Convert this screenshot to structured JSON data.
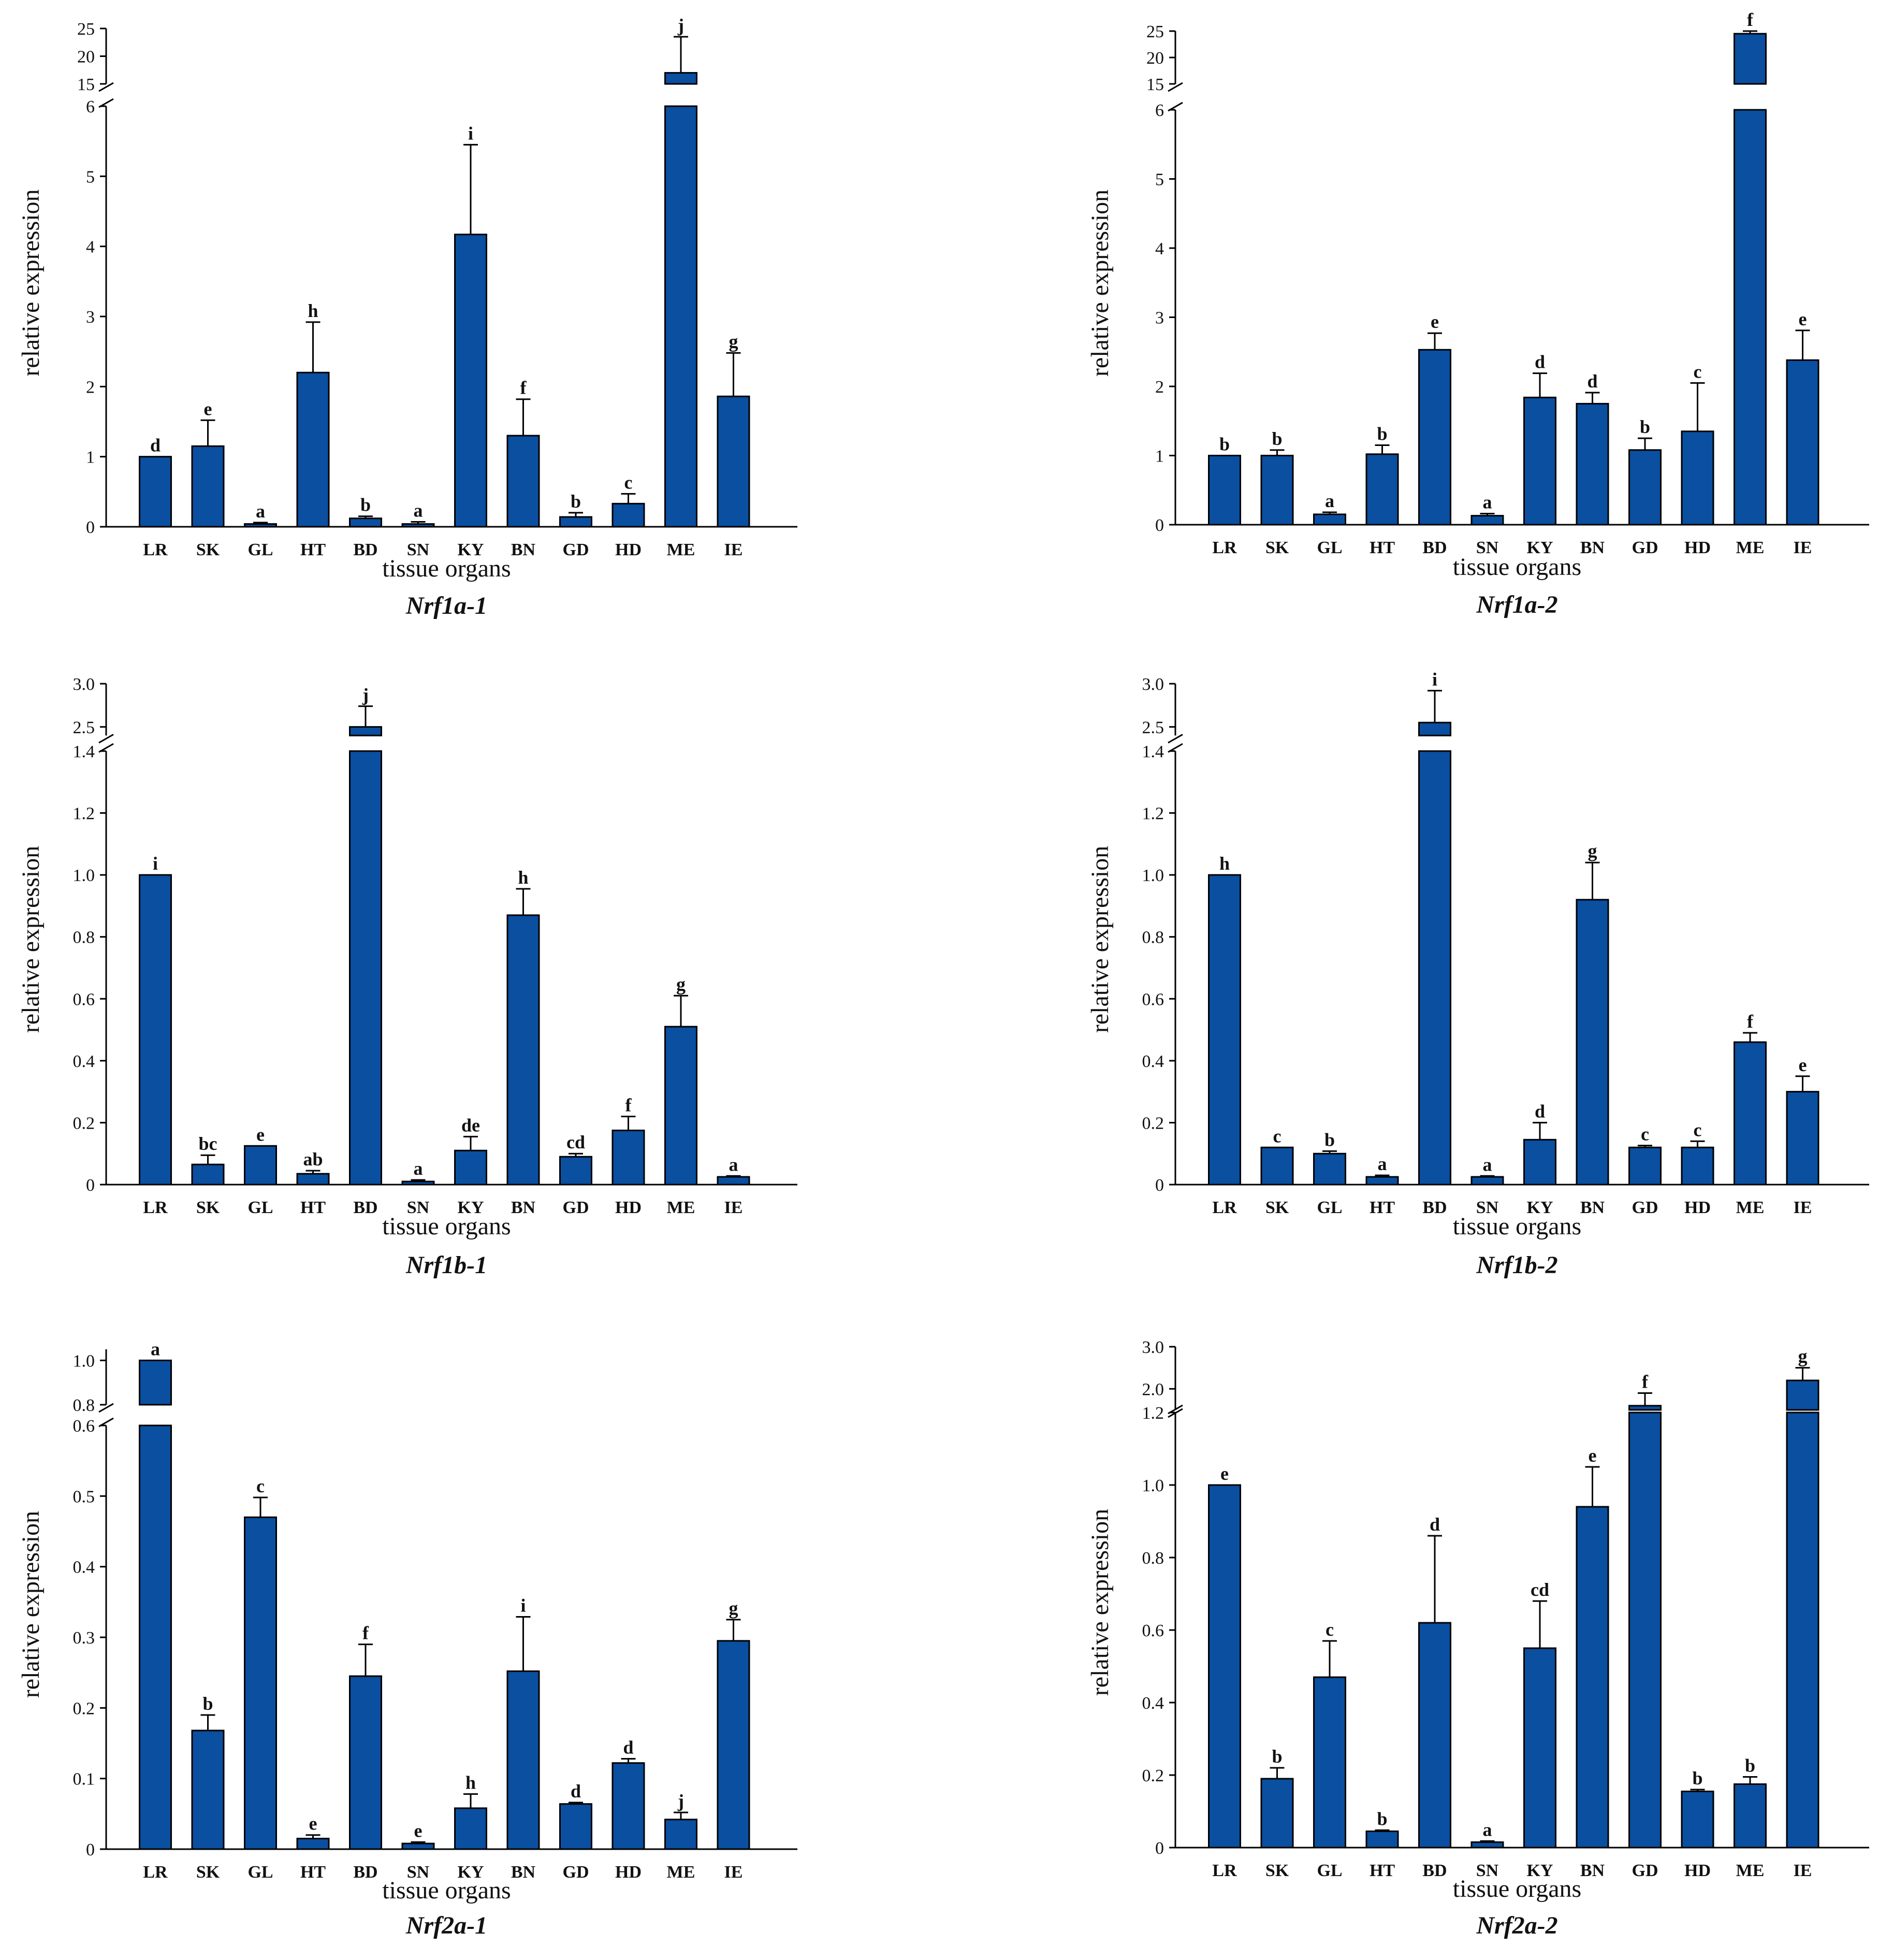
{
  "style": {
    "bar_color": "#0a4fa0",
    "axis_color": "#000000",
    "text_color": "#111111"
  },
  "chart_data": [
    {
      "type": "bar",
      "title": "Nrf1a-1",
      "xlabel": "tissue organs",
      "ylabel": "relative expression",
      "categories": [
        "LR",
        "SK",
        "GL",
        "HT",
        "BD",
        "SN",
        "KY",
        "BN",
        "GD",
        "HD",
        "ME",
        "IE"
      ],
      "values": [
        1.0,
        1.15,
        0.04,
        2.2,
        0.12,
        0.04,
        4.17,
        1.3,
        0.14,
        0.33,
        17.0,
        1.86
      ],
      "errors": [
        0.0,
        0.37,
        0.02,
        0.72,
        0.03,
        0.03,
        1.28,
        0.52,
        0.06,
        0.14,
        6.5,
        0.62
      ],
      "significance": [
        "d",
        "e",
        "a",
        "h",
        "b",
        "a",
        "i",
        "f",
        "b",
        "c",
        "j",
        "g"
      ],
      "lower_ylim": [
        0,
        6
      ],
      "lower_ticks": [
        "0",
        "1",
        "2",
        "3",
        "4",
        "5",
        "6"
      ],
      "upper_ylim": [
        15,
        25
      ],
      "upper_ticks": [
        "15",
        "20",
        "25"
      ]
    },
    {
      "type": "bar",
      "title": "Nrf1a-2",
      "xlabel": "tissue organs",
      "ylabel": "relative expression",
      "categories": [
        "LR",
        "SK",
        "GL",
        "HT",
        "BD",
        "SN",
        "KY",
        "BN",
        "GD",
        "HD",
        "ME",
        "IE"
      ],
      "values": [
        1.0,
        1.0,
        0.15,
        1.02,
        2.53,
        0.13,
        1.84,
        1.75,
        1.08,
        1.35,
        24.5,
        2.38
      ],
      "errors": [
        0.0,
        0.08,
        0.03,
        0.13,
        0.24,
        0.03,
        0.35,
        0.16,
        0.17,
        0.7,
        1.0,
        0.43
      ],
      "significance": [
        "b",
        "b",
        "a",
        "b",
        "e",
        "a",
        "d",
        "d",
        "b",
        "c",
        "f",
        "e"
      ],
      "lower_ylim": [
        0,
        6
      ],
      "lower_ticks": [
        "0",
        "1",
        "2",
        "3",
        "4",
        "5",
        "6"
      ],
      "upper_ylim": [
        15,
        25
      ],
      "upper_ticks": [
        "15",
        "20",
        "25"
      ]
    },
    {
      "type": "bar",
      "title": "Nrf1b-1",
      "xlabel": "tissue organs",
      "ylabel": "relative expression",
      "categories": [
        "LR",
        "SK",
        "GL",
        "HT",
        "BD",
        "SN",
        "KY",
        "BN",
        "GD",
        "HD",
        "ME",
        "IE"
      ],
      "values": [
        1.0,
        0.065,
        0.125,
        0.035,
        2.5,
        0.01,
        0.11,
        0.87,
        0.09,
        0.175,
        0.51,
        0.025
      ],
      "errors": [
        0.0,
        0.03,
        0.0,
        0.01,
        0.24,
        0.005,
        0.045,
        0.085,
        0.01,
        0.045,
        0.1,
        0.003
      ],
      "significance": [
        "i",
        "bc",
        "e",
        "ab",
        "j",
        "a",
        "de",
        "h",
        "cd",
        "f",
        "g",
        "a"
      ],
      "lower_ylim": [
        0,
        1.4
      ],
      "lower_ticks": [
        "0",
        "0.2",
        "0.4",
        "0.6",
        "0.8",
        "1.0",
        "1.2",
        "1.4"
      ],
      "upper_ylim": [
        2.4,
        3.0
      ],
      "upper_ticks": [
        "2.5",
        "3.0"
      ]
    },
    {
      "type": "bar",
      "title": "Nrf1b-2",
      "xlabel": "tissue organs",
      "ylabel": "relative expression",
      "categories": [
        "LR",
        "SK",
        "GL",
        "HT",
        "BD",
        "SN",
        "KY",
        "BN",
        "GD",
        "HD",
        "ME",
        "IE"
      ],
      "values": [
        1.0,
        0.12,
        0.1,
        0.025,
        2.55,
        0.025,
        0.145,
        0.92,
        0.12,
        0.12,
        0.46,
        0.3
      ],
      "errors": [
        0.0,
        0.0,
        0.008,
        0.005,
        0.37,
        0.003,
        0.055,
        0.12,
        0.006,
        0.02,
        0.03,
        0.05
      ],
      "significance": [
        "h",
        "c",
        "b",
        "a",
        "i",
        "a",
        "d",
        "g",
        "c",
        "c",
        "f",
        "e"
      ],
      "lower_ylim": [
        0,
        1.4
      ],
      "lower_ticks": [
        "0",
        "0.2",
        "0.4",
        "0.6",
        "0.8",
        "1.0",
        "1.2",
        "1.4"
      ],
      "upper_ylim": [
        2.4,
        3.0
      ],
      "upper_ticks": [
        "2.5",
        "3.0"
      ]
    },
    {
      "type": "bar",
      "title": "Nrf2a-1",
      "xlabel": "tissue organs",
      "ylabel": "relative expression",
      "categories": [
        "LR",
        "SK",
        "GL",
        "HT",
        "BD",
        "SN",
        "KY",
        "BN",
        "GD",
        "HD",
        "ME",
        "IE"
      ],
      "values": [
        1.0,
        0.168,
        0.47,
        0.015,
        0.245,
        0.008,
        0.058,
        0.252,
        0.064,
        0.122,
        0.042,
        0.295
      ],
      "errors": [
        0.0,
        0.022,
        0.028,
        0.005,
        0.045,
        0.002,
        0.02,
        0.077,
        0.002,
        0.006,
        0.01,
        0.03
      ],
      "significance": [
        "a",
        "b",
        "c",
        "e",
        "f",
        "e",
        "h",
        "i",
        "d",
        "d",
        "j",
        "g"
      ],
      "lower_ylim": [
        0,
        0.6
      ],
      "lower_ticks": [
        "0",
        "0.1",
        "0.2",
        "0.3",
        "0.4",
        "0.5",
        "0.6"
      ],
      "upper_ylim": [
        0.8,
        1.05
      ],
      "upper_ticks": [
        "0.8",
        "1.0"
      ]
    },
    {
      "type": "bar",
      "title": "Nrf2a-2",
      "xlabel": "tissue organs",
      "ylabel": "relative expression",
      "categories": [
        "LR",
        "SK",
        "GL",
        "HT",
        "BD",
        "SN",
        "KY",
        "BN",
        "GD",
        "HD",
        "ME",
        "IE"
      ],
      "values": [
        1.0,
        0.19,
        0.47,
        0.045,
        0.62,
        0.015,
        0.55,
        0.94,
        1.6,
        0.155,
        0.175,
        2.2
      ],
      "errors": [
        0.0,
        0.03,
        0.1,
        0.003,
        0.24,
        0.003,
        0.13,
        0.11,
        0.3,
        0.005,
        0.02,
        0.3
      ],
      "significance": [
        "e",
        "b",
        "c",
        "b",
        "d",
        "a",
        "cd",
        "e",
        "f",
        "b",
        "b",
        "g"
      ],
      "lower_ylim": [
        0,
        1.2
      ],
      "lower_ticks": [
        "0",
        "0.2",
        "0.4",
        "0.6",
        "0.8",
        "1.0",
        "1.2"
      ],
      "upper_ylim": [
        1.5,
        3.0
      ],
      "upper_ticks": [
        "2.0",
        "3.0"
      ]
    }
  ]
}
